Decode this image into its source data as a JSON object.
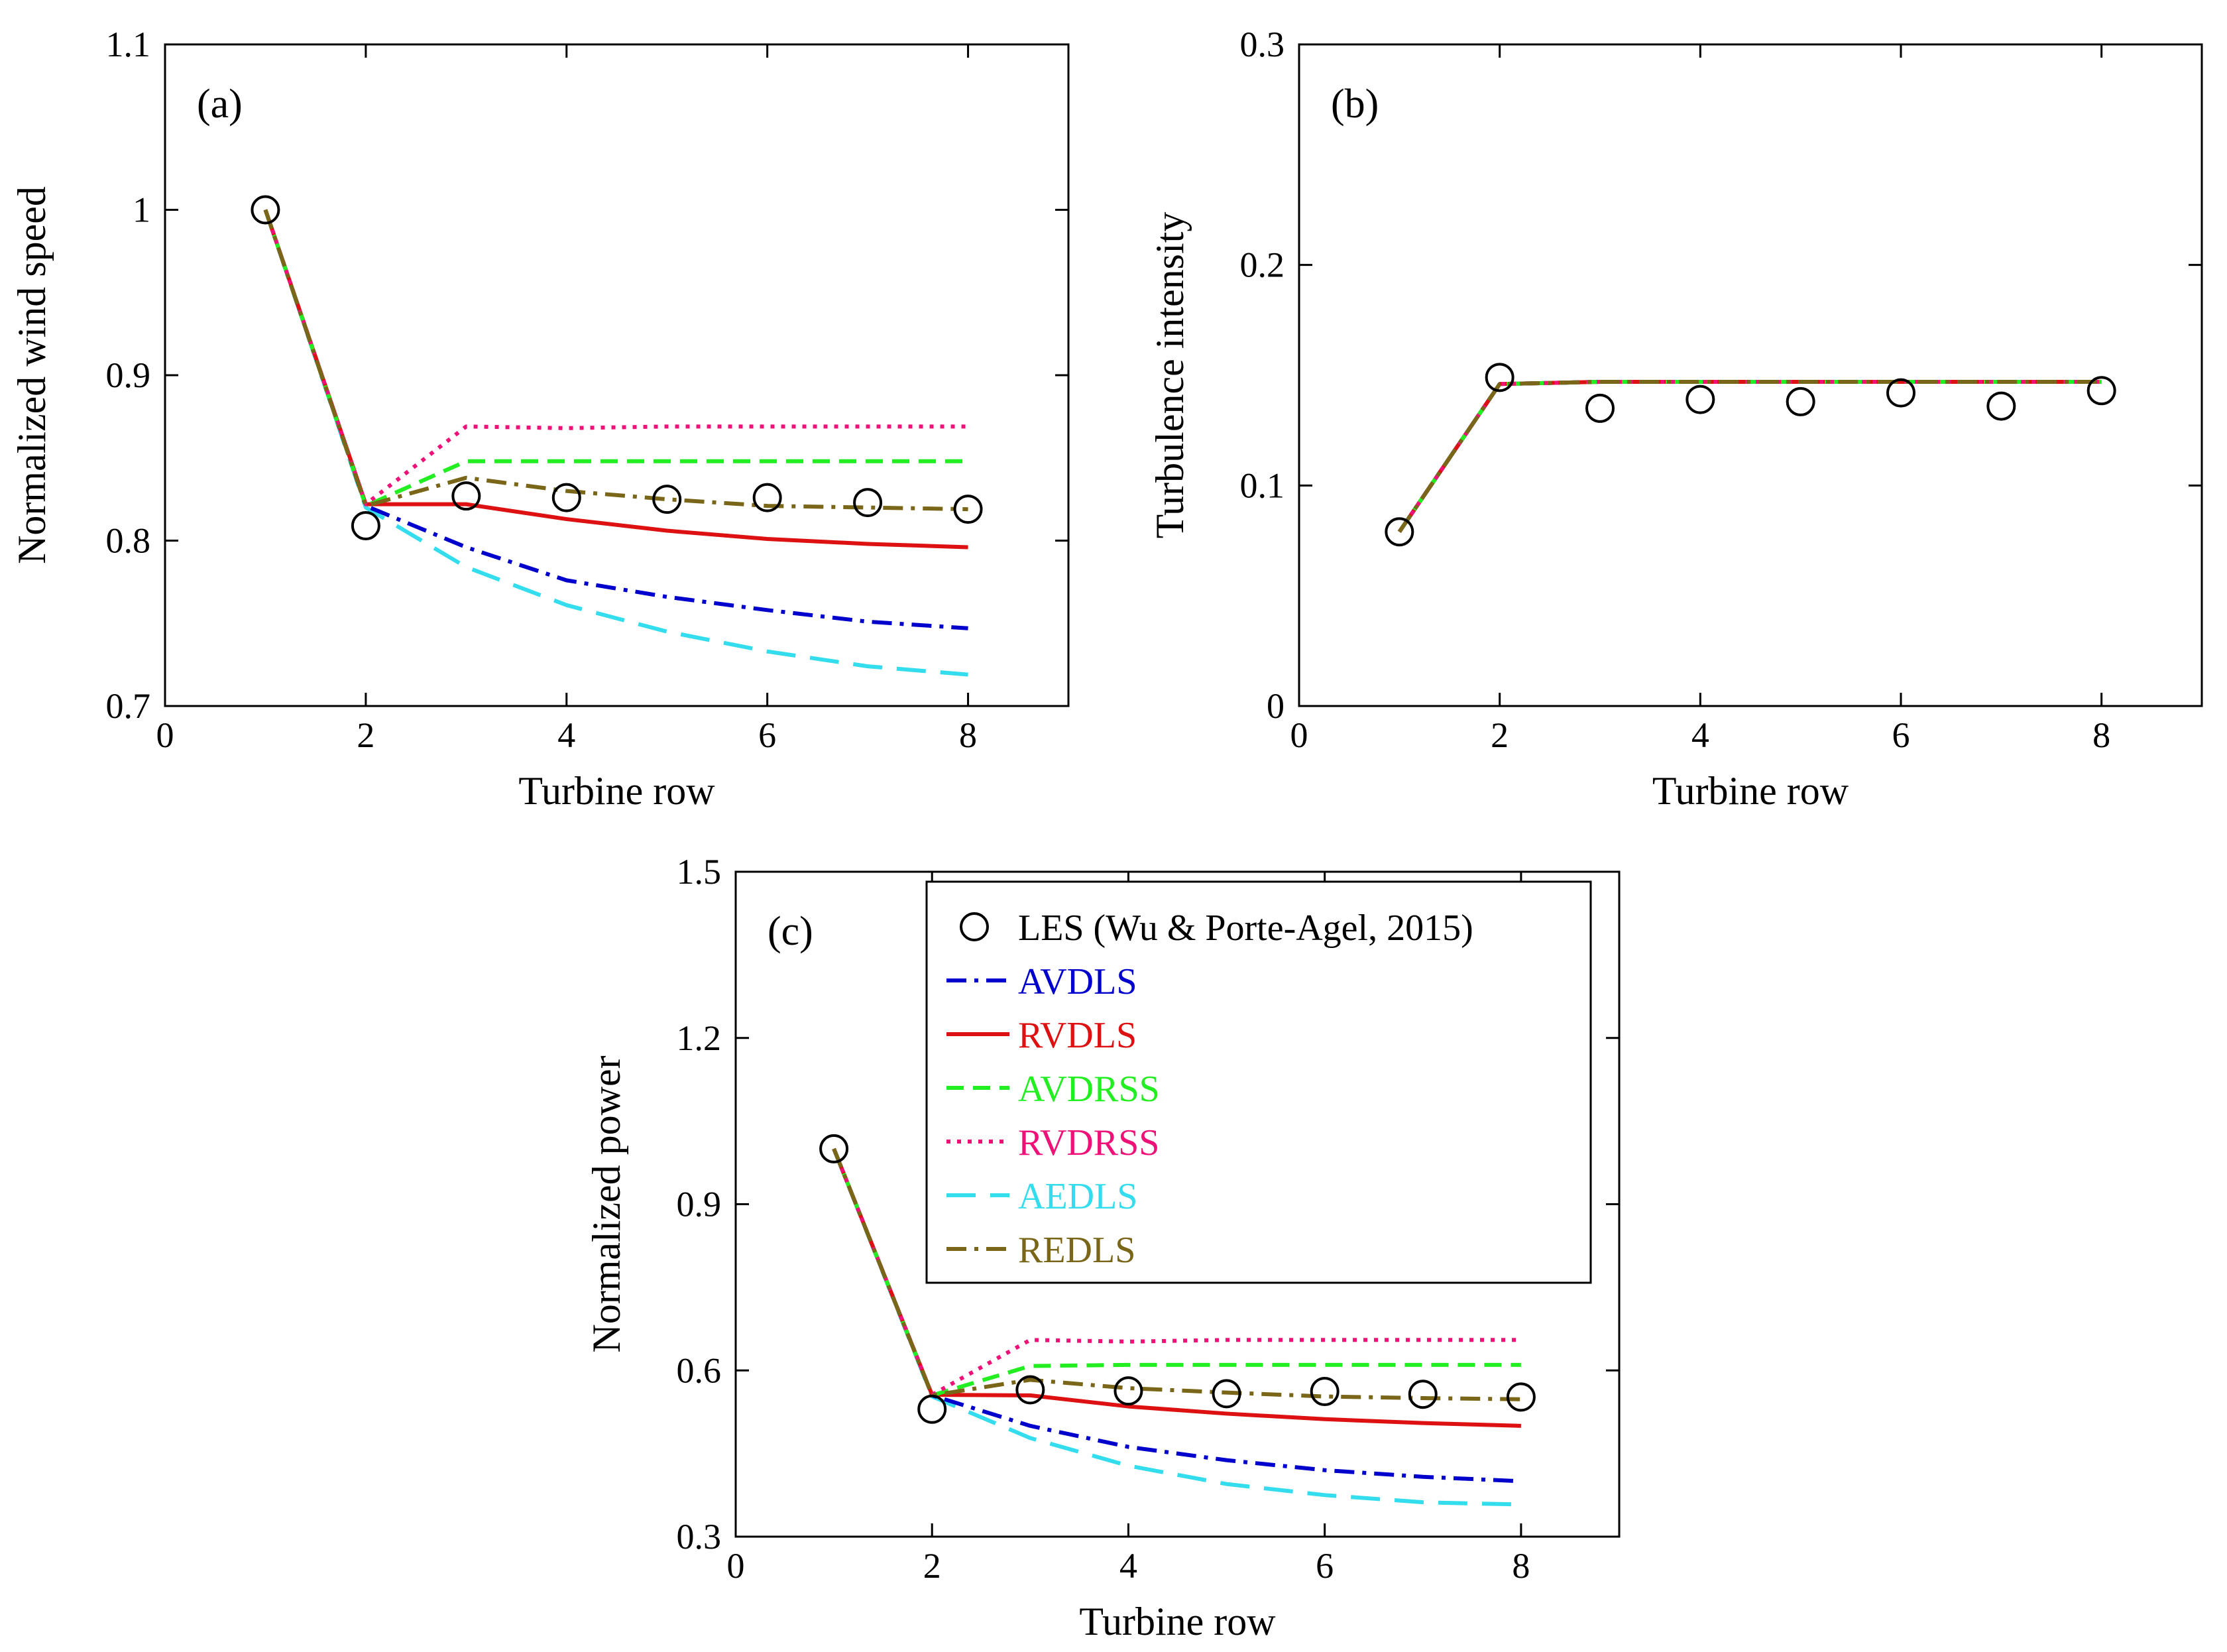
{
  "chart_data": [
    {
      "id": "a",
      "type": "line",
      "panel_label": "(a)",
      "xlabel": "Turbine row",
      "ylabel": "Normalized wind speed",
      "xlim": [
        0,
        9
      ],
      "ylim": [
        0.7,
        1.1
      ],
      "xticks": [
        0,
        2,
        4,
        6,
        8
      ],
      "yticks": [
        0.7,
        0.8,
        0.9,
        1,
        1.1
      ],
      "ytick_labels": [
        "0.7",
        "0.8",
        "0.9",
        "1",
        "1.1"
      ],
      "x": [
        1,
        2,
        3,
        4,
        5,
        6,
        7,
        8
      ],
      "series": [
        {
          "name": "LES (Wu & Porte-Agel, 2015)",
          "key": "les",
          "values": [
            1.0,
            0.809,
            0.827,
            0.826,
            0.825,
            0.826,
            0.823,
            0.819
          ]
        },
        {
          "name": "AVDLS",
          "key": "avdls",
          "values": [
            1.0,
            0.821,
            0.796,
            0.776,
            0.766,
            0.758,
            0.751,
            0.747
          ]
        },
        {
          "name": "RVDLS",
          "key": "rvdls",
          "values": [
            1.0,
            0.822,
            0.822,
            0.813,
            0.806,
            0.801,
            0.798,
            0.796
          ]
        },
        {
          "name": "AVDRSS",
          "key": "avdrss",
          "values": [
            1.0,
            0.821,
            0.848,
            0.848,
            0.848,
            0.848,
            0.848,
            0.848
          ]
        },
        {
          "name": "RVDRSS",
          "key": "rvdrss",
          "values": [
            1.0,
            0.822,
            0.869,
            0.868,
            0.869,
            0.869,
            0.869,
            0.869
          ]
        },
        {
          "name": "AEDLS",
          "key": "aedls",
          "values": [
            1.0,
            0.82,
            0.784,
            0.761,
            0.745,
            0.733,
            0.724,
            0.719
          ]
        },
        {
          "name": "REDLS",
          "key": "redls",
          "values": [
            1.0,
            0.821,
            0.838,
            0.83,
            0.825,
            0.821,
            0.82,
            0.819
          ]
        }
      ]
    },
    {
      "id": "b",
      "type": "line",
      "panel_label": "(b)",
      "xlabel": "Turbine row",
      "ylabel": "Turbulence intensity",
      "xlim": [
        0,
        9
      ],
      "ylim": [
        0,
        0.3
      ],
      "xticks": [
        0,
        2,
        4,
        6,
        8
      ],
      "yticks": [
        0,
        0.1,
        0.2,
        0.3
      ],
      "ytick_labels": [
        "0",
        "0.1",
        "0.2",
        "0.3"
      ],
      "x": [
        1,
        2,
        3,
        4,
        5,
        6,
        7,
        8
      ],
      "series": [
        {
          "name": "LES (Wu & Porte-Agel, 2015)",
          "key": "les",
          "values": [
            0.079,
            0.149,
            0.135,
            0.139,
            0.138,
            0.142,
            0.136,
            0.143
          ]
        },
        {
          "name": "AVDLS",
          "key": "avdls",
          "values": [
            0.079,
            0.146,
            0.147,
            0.147,
            0.147,
            0.147,
            0.147,
            0.147
          ]
        },
        {
          "name": "RVDLS",
          "key": "rvdls",
          "values": [
            0.079,
            0.146,
            0.147,
            0.147,
            0.147,
            0.147,
            0.147,
            0.147
          ]
        },
        {
          "name": "AVDRSS",
          "key": "avdrss",
          "values": [
            0.079,
            0.146,
            0.147,
            0.147,
            0.147,
            0.147,
            0.147,
            0.147
          ]
        },
        {
          "name": "RVDRSS",
          "key": "rvdrss",
          "values": [
            0.079,
            0.146,
            0.147,
            0.147,
            0.147,
            0.147,
            0.147,
            0.147
          ]
        },
        {
          "name": "AEDLS",
          "key": "aedls",
          "values": [
            0.079,
            0.146,
            0.147,
            0.147,
            0.147,
            0.147,
            0.147,
            0.147
          ]
        },
        {
          "name": "REDLS",
          "key": "redls",
          "values": [
            0.079,
            0.146,
            0.147,
            0.147,
            0.147,
            0.147,
            0.147,
            0.147
          ]
        }
      ]
    },
    {
      "id": "c",
      "type": "line",
      "panel_label": "(c)",
      "xlabel": "Turbine row",
      "ylabel": "Normalized power",
      "xlim": [
        0,
        9
      ],
      "ylim": [
        0.3,
        1.5
      ],
      "xticks": [
        0,
        2,
        4,
        6,
        8
      ],
      "yticks": [
        0.3,
        0.6,
        0.9,
        1.2,
        1.5
      ],
      "ytick_labels": [
        "0.3",
        "0.6",
        "0.9",
        "1.2",
        "1.5"
      ],
      "x": [
        1,
        2,
        3,
        4,
        5,
        6,
        7,
        8
      ],
      "series": [
        {
          "name": "LES (Wu & Porte-Agel, 2015)",
          "key": "les",
          "values": [
            1.0,
            0.53,
            0.565,
            0.563,
            0.558,
            0.562,
            0.557,
            0.552
          ]
        },
        {
          "name": "AVDLS",
          "key": "avdls",
          "values": [
            1.0,
            0.555,
            0.5,
            0.462,
            0.438,
            0.42,
            0.408,
            0.4
          ]
        },
        {
          "name": "RVDLS",
          "key": "rvdls",
          "values": [
            1.0,
            0.556,
            0.555,
            0.535,
            0.522,
            0.512,
            0.505,
            0.5
          ]
        },
        {
          "name": "AVDRSS",
          "key": "avdrss",
          "values": [
            1.0,
            0.555,
            0.608,
            0.61,
            0.61,
            0.61,
            0.61,
            0.61
          ]
        },
        {
          "name": "RVDRSS",
          "key": "rvdrss",
          "values": [
            1.0,
            0.556,
            0.655,
            0.652,
            0.655,
            0.655,
            0.655,
            0.655
          ]
        },
        {
          "name": "AEDLS",
          "key": "aedls",
          "values": [
            1.0,
            0.553,
            0.478,
            0.428,
            0.395,
            0.375,
            0.362,
            0.358
          ]
        },
        {
          "name": "REDLS",
          "key": "redls",
          "values": [
            1.0,
            0.555,
            0.583,
            0.568,
            0.56,
            0.553,
            0.55,
            0.548
          ]
        }
      ]
    }
  ],
  "legend": {
    "location": "top-right of panel (c)",
    "entries": [
      {
        "key": "les",
        "label": "LES  (Wu & Porte-Agel, 2015)"
      },
      {
        "key": "avdls",
        "label": "AVDLS"
      },
      {
        "key": "rvdls",
        "label": "RVDLS"
      },
      {
        "key": "avdrss",
        "label": "AVDRSS"
      },
      {
        "key": "rvdrss",
        "label": "RVDRSS"
      },
      {
        "key": "aedls",
        "label": "AEDLS"
      },
      {
        "key": "redls",
        "label": "REDLS"
      }
    ]
  },
  "styles": {
    "les": {
      "color": "#000000",
      "dash": "none",
      "marker": "circle"
    },
    "avdls": {
      "color": "#0000cc",
      "dash": "dashdot"
    },
    "rvdls": {
      "color": "#dd1111",
      "dash": "solid"
    },
    "avdrss": {
      "color": "#22ee22",
      "dash": "dashed"
    },
    "rvdrss": {
      "color": "#ee1177",
      "dash": "dotted"
    },
    "aedls": {
      "color": "#33ddee",
      "dash": "longdash"
    },
    "redls": {
      "color": "#7a6618",
      "dash": "dashdot"
    }
  }
}
